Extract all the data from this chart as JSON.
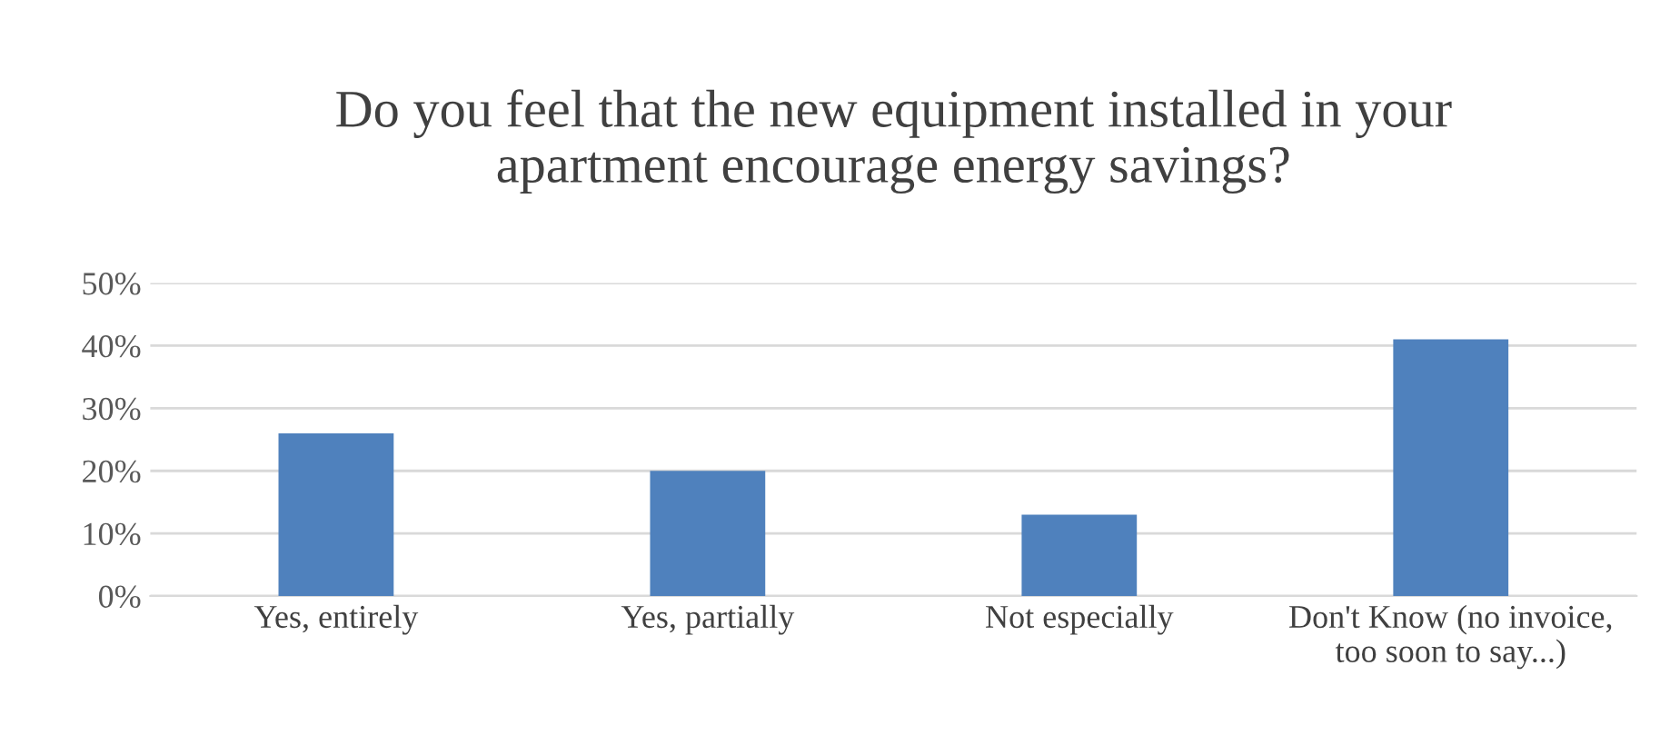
{
  "chart_data": {
    "type": "bar",
    "title": "Do you feel that the new equipment installed in your\napartment encourage energy savings?",
    "categories": [
      "Yes, entirely",
      "Yes, partially",
      "Not especially",
      "Don't Know (no invoice,\ntoo soon to say...)"
    ],
    "values": [
      26,
      20,
      13,
      41
    ],
    "color": "#4f81bd",
    "ylim": [
      0,
      50
    ],
    "yticks": [
      {
        "value": 0,
        "label": "0%"
      },
      {
        "value": 10,
        "label": "10%"
      },
      {
        "value": 20,
        "label": "20%"
      },
      {
        "value": 30,
        "label": "30%"
      },
      {
        "value": 40,
        "label": "40%"
      },
      {
        "value": 50,
        "label": "50%"
      }
    ],
    "grid": "y"
  }
}
